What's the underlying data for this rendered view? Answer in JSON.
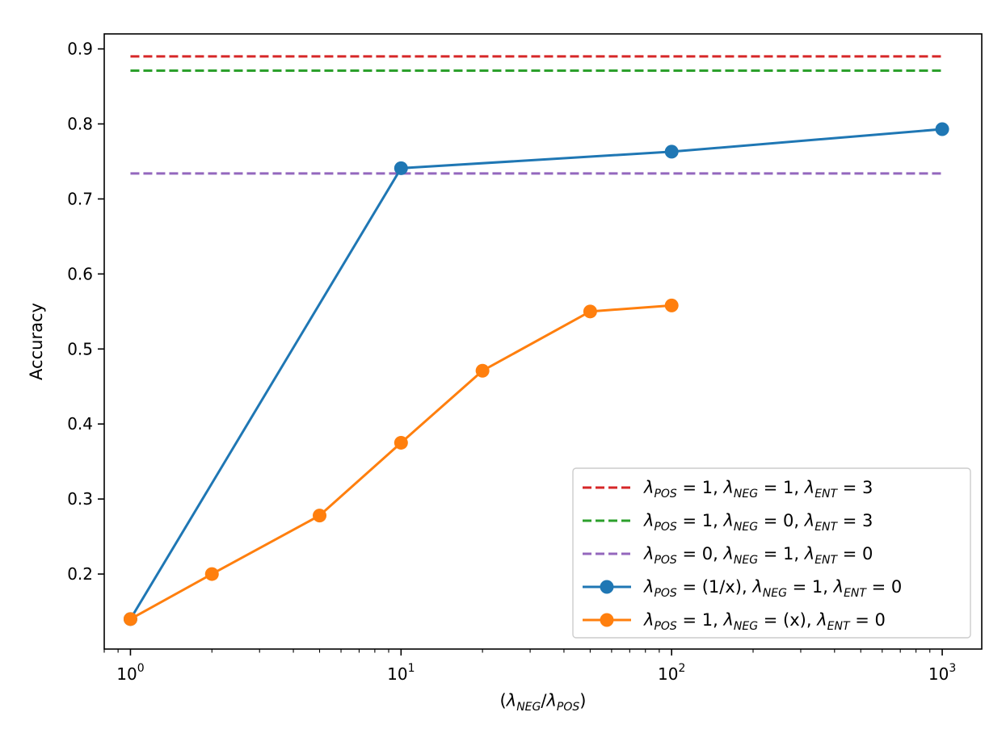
{
  "chart_data": {
    "type": "line",
    "title": "",
    "xlabel": "(λ_NEG/λ_POS)",
    "ylabel": "Accuracy",
    "xscale": "log",
    "xlim": [
      0.8,
      1400
    ],
    "ylim": [
      0.1,
      0.92
    ],
    "grid": false,
    "legend_position": "lower-right",
    "x_ticks": [
      {
        "value": 1,
        "base": "10",
        "exp": "0"
      },
      {
        "value": 10,
        "base": "10",
        "exp": "1"
      },
      {
        "value": 100,
        "base": "10",
        "exp": "2"
      },
      {
        "value": 1000,
        "base": "10",
        "exp": "3"
      }
    ],
    "y_ticks": [
      {
        "value": 0.2,
        "label": "0.2"
      },
      {
        "value": 0.3,
        "label": "0.3"
      },
      {
        "value": 0.4,
        "label": "0.4"
      },
      {
        "value": 0.5,
        "label": "0.5"
      },
      {
        "value": 0.6,
        "label": "0.6"
      },
      {
        "value": 0.7,
        "label": "0.7"
      },
      {
        "value": 0.8,
        "label": "0.8"
      },
      {
        "value": 0.9,
        "label": "0.9"
      }
    ],
    "hlines": [
      {
        "name": "λPOS=1, λNEG=1, λENT=3",
        "y": 0.89,
        "color": "#d62728",
        "x_range": [
          1,
          1000
        ],
        "label": [
          {
            "sym": "λ",
            "sub": "POS",
            "val": "1"
          },
          {
            "sym": "λ",
            "sub": "NEG",
            "val": "1"
          },
          {
            "sym": "λ",
            "sub": "ENT",
            "val": "3"
          }
        ]
      },
      {
        "name": "λPOS=1, λNEG=0, λENT=3",
        "y": 0.871,
        "color": "#2ca02c",
        "x_range": [
          1,
          1000
        ],
        "label": [
          {
            "sym": "λ",
            "sub": "POS",
            "val": "1"
          },
          {
            "sym": "λ",
            "sub": "NEG",
            "val": "0"
          },
          {
            "sym": "λ",
            "sub": "ENT",
            "val": "3"
          }
        ]
      },
      {
        "name": "λPOS=0, λNEG=1, λENT=0",
        "y": 0.734,
        "color": "#9467bd",
        "x_range": [
          1,
          1000
        ],
        "label": [
          {
            "sym": "λ",
            "sub": "POS",
            "val": "0"
          },
          {
            "sym": "λ",
            "sub": "NEG",
            "val": "1"
          },
          {
            "sym": "λ",
            "sub": "ENT",
            "val": "0"
          }
        ]
      }
    ],
    "series": [
      {
        "name": "λPOS=(1/x), λNEG=1, λENT=0",
        "color": "#1f77b4",
        "x": [
          1,
          10,
          100,
          1000
        ],
        "y": [
          0.14,
          0.741,
          0.763,
          0.793
        ],
        "label": [
          {
            "sym": "λ",
            "sub": "POS",
            "val": "(1/x)"
          },
          {
            "sym": "λ",
            "sub": "NEG",
            "val": "1"
          },
          {
            "sym": "λ",
            "sub": "ENT",
            "val": "0"
          }
        ]
      },
      {
        "name": "λPOS=1, λNEG=(x), λENT=0",
        "color": "#ff7f0e",
        "x": [
          1,
          2,
          5,
          10,
          20,
          50,
          100
        ],
        "y": [
          0.14,
          0.2,
          0.278,
          0.375,
          0.471,
          0.55,
          0.558
        ],
        "label": [
          {
            "sym": "λ",
            "sub": "POS",
            "val": "1"
          },
          {
            "sym": "λ",
            "sub": "NEG",
            "val": "(x)"
          },
          {
            "sym": "λ",
            "sub": "ENT",
            "val": "0"
          }
        ]
      }
    ]
  }
}
